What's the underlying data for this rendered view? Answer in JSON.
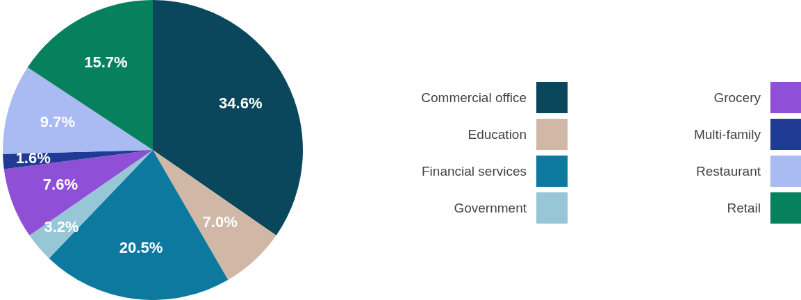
{
  "chart_data": {
    "type": "pie",
    "categories": [
      "Commercial office",
      "Education",
      "Financial services",
      "Government",
      "Grocery",
      "Multi-family",
      "Restaurant",
      "Retail"
    ],
    "values": [
      34.6,
      7.0,
      20.5,
      3.2,
      7.6,
      1.6,
      9.7,
      15.7
    ],
    "colors": [
      "#0a475c",
      "#d1b8a6",
      "#0e799f",
      "#97c6d6",
      "#8f4fd6",
      "#1f3b93",
      "#aabaf3",
      "#07805e"
    ],
    "value_labels": [
      "34.6%",
      "7.0%",
      "20.5%",
      "3.2%",
      "7.6%",
      "1.6%",
      "9.7%",
      "15.7%"
    ],
    "legend": "right"
  }
}
